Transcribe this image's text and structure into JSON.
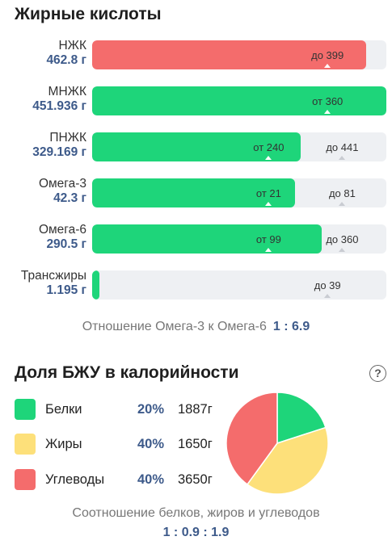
{
  "fatty_acids": {
    "title": "Жирные кислоты",
    "rows": [
      {
        "label": "НЖК",
        "value": "462.8 г",
        "fill_percent": 93,
        "color": "red",
        "marks": [
          {
            "text": "до 399",
            "pos": 80
          }
        ]
      },
      {
        "label": "МНЖК",
        "value": "451.936 г",
        "fill_percent": 100,
        "color": "green",
        "marks": [
          {
            "text": "от 360",
            "pos": 80
          }
        ]
      },
      {
        "label": "ПНЖК",
        "value": "329.169 г",
        "fill_percent": 71,
        "color": "green",
        "marks": [
          {
            "text": "от 240",
            "pos": 60
          },
          {
            "text": "до 441",
            "pos": 85
          }
        ]
      },
      {
        "label": "Омега-3",
        "value": "42.3 г",
        "fill_percent": 69,
        "color": "green",
        "marks": [
          {
            "text": "от 21",
            "pos": 60
          },
          {
            "text": "до 81",
            "pos": 85
          }
        ]
      },
      {
        "label": "Омега-6",
        "value": "290.5 г",
        "fill_percent": 78,
        "color": "green",
        "marks": [
          {
            "text": "от 99",
            "pos": 60
          },
          {
            "text": "до 360",
            "pos": 85
          }
        ]
      },
      {
        "label": "Трансжиры",
        "value": "1.195 г",
        "fill_percent": 2.5,
        "color": "green",
        "marks": [
          {
            "text": "до 39",
            "pos": 80
          }
        ]
      }
    ],
    "omega_ratio_label": "Отношение Омега-3 к Омега-6",
    "omega_ratio_value": "1 : 6.9"
  },
  "bju": {
    "title": "Доля БЖУ в калорийности",
    "help_icon": "?",
    "legend": [
      {
        "name": "Белки",
        "percent": "20%",
        "grams": "1887г",
        "color": "#1ed57a",
        "share": 20
      },
      {
        "name": "Жиры",
        "percent": "40%",
        "grams": "1650г",
        "color": "#fde07a",
        "share": 40
      },
      {
        "name": "Углеводы",
        "percent": "40%",
        "grams": "3650г",
        "color": "#f46c6c",
        "share": 40
      }
    ],
    "ratio_label": "Соотношение белков, жиров и углеводов",
    "ratio_value": "1 : 0.9 : 1.9"
  },
  "colors": {
    "green": "#1ed57a",
    "red": "#f46c6c",
    "yellow": "#fde07a",
    "accent": "#3d5a8a"
  },
  "chart_data": {
    "type": "pie",
    "categories": [
      "Белки",
      "Жиры",
      "Углеводы"
    ],
    "values": [
      20,
      40,
      40
    ]
  }
}
